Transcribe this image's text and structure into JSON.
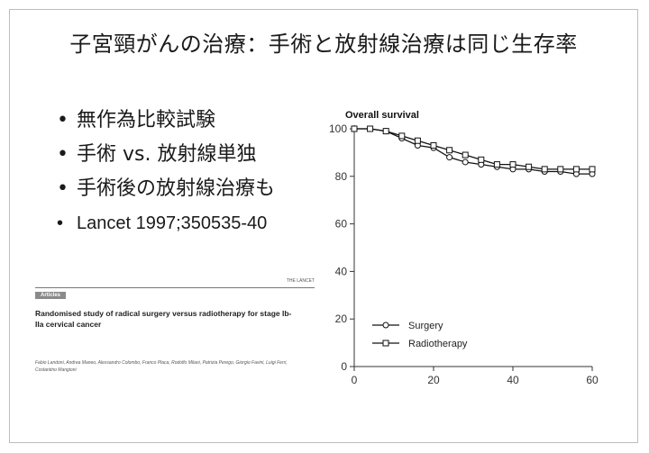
{
  "slide": {
    "title": "子宮頸がんの治療：手術と放射線治療は同じ生存率",
    "bullets": [
      "無作為比較試験",
      "手術 vs. 放射線単独",
      "手術後の放射線治療も",
      "Lancet 1997;350535-40"
    ]
  },
  "paper": {
    "journal": "THE LANCET",
    "section": "Articles",
    "title": "Randomised study of radical surgery versus radiotherapy for stage Ib-IIa cervical cancer",
    "authors": "Fabio Landoni, Andrea Maneo, Alessandro Colombo, Franco Placa, Rodolfo Milani, Patrizia Perego, Giorgio Favini, Luigi Ferri, Costantino Mangioni"
  },
  "chart_data": {
    "type": "line",
    "title": "Overall survival",
    "xlabel": "",
    "ylabel": "",
    "xlim": [
      0,
      60
    ],
    "ylim": [
      0,
      100
    ],
    "xticks": [
      0,
      20,
      40,
      60
    ],
    "yticks": [
      0,
      20,
      40,
      60,
      80,
      100
    ],
    "grid": false,
    "legend_position": "bottom-left",
    "series": [
      {
        "name": "Surgery",
        "marker": "circle",
        "x": [
          0,
          4,
          8,
          12,
          16,
          20,
          24,
          28,
          32,
          36,
          40,
          44,
          48,
          52,
          56,
          60
        ],
        "y": [
          100,
          100,
          99,
          96,
          93,
          92,
          88,
          86,
          85,
          84,
          83,
          83,
          82,
          82,
          81,
          81
        ]
      },
      {
        "name": "Radiotherapy",
        "marker": "square",
        "x": [
          0,
          4,
          8,
          12,
          16,
          20,
          24,
          28,
          32,
          36,
          40,
          44,
          48,
          52,
          56,
          60
        ],
        "y": [
          100,
          100,
          99,
          97,
          95,
          93,
          91,
          89,
          87,
          85,
          85,
          84,
          83,
          83,
          83,
          83
        ]
      }
    ]
  }
}
